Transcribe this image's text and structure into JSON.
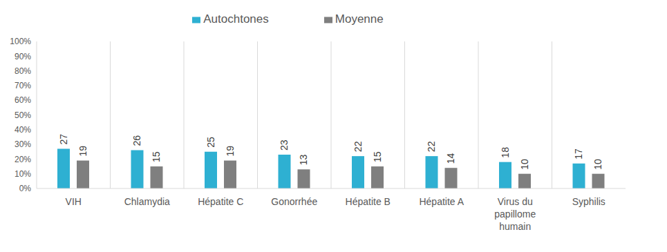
{
  "chart_data": {
    "type": "bar",
    "categories": [
      "VIH",
      "Chlamydia",
      "Hépatite C",
      "Gonorrhée",
      "Hépatite B",
      "Hépatite A",
      "Virus du papillome humain",
      "Syphilis"
    ],
    "series": [
      {
        "name": "Autochtones",
        "color": "#2eb0d2",
        "values": [
          27,
          26,
          25,
          23,
          22,
          22,
          18,
          17
        ]
      },
      {
        "name": "Moyenne",
        "color": "#7f7f7f",
        "values": [
          19,
          15,
          19,
          13,
          15,
          14,
          10,
          10
        ]
      }
    ],
    "ylim": [
      0,
      100
    ],
    "yticks": [
      {
        "value": 0,
        "label": "0%"
      },
      {
        "value": 10,
        "label": "10%"
      },
      {
        "value": 20,
        "label": "20%"
      },
      {
        "value": 30,
        "label": "30%"
      },
      {
        "value": 40,
        "label": "40%"
      },
      {
        "value": 50,
        "label": "50%"
      },
      {
        "value": 60,
        "label": "60%"
      },
      {
        "value": 70,
        "label": "70%"
      },
      {
        "value": 80,
        "label": "80%"
      },
      {
        "value": 90,
        "label": "90%"
      },
      {
        "value": 100,
        "label": "100%"
      }
    ],
    "grid": "x",
    "legend": "top",
    "data_labels": true
  }
}
